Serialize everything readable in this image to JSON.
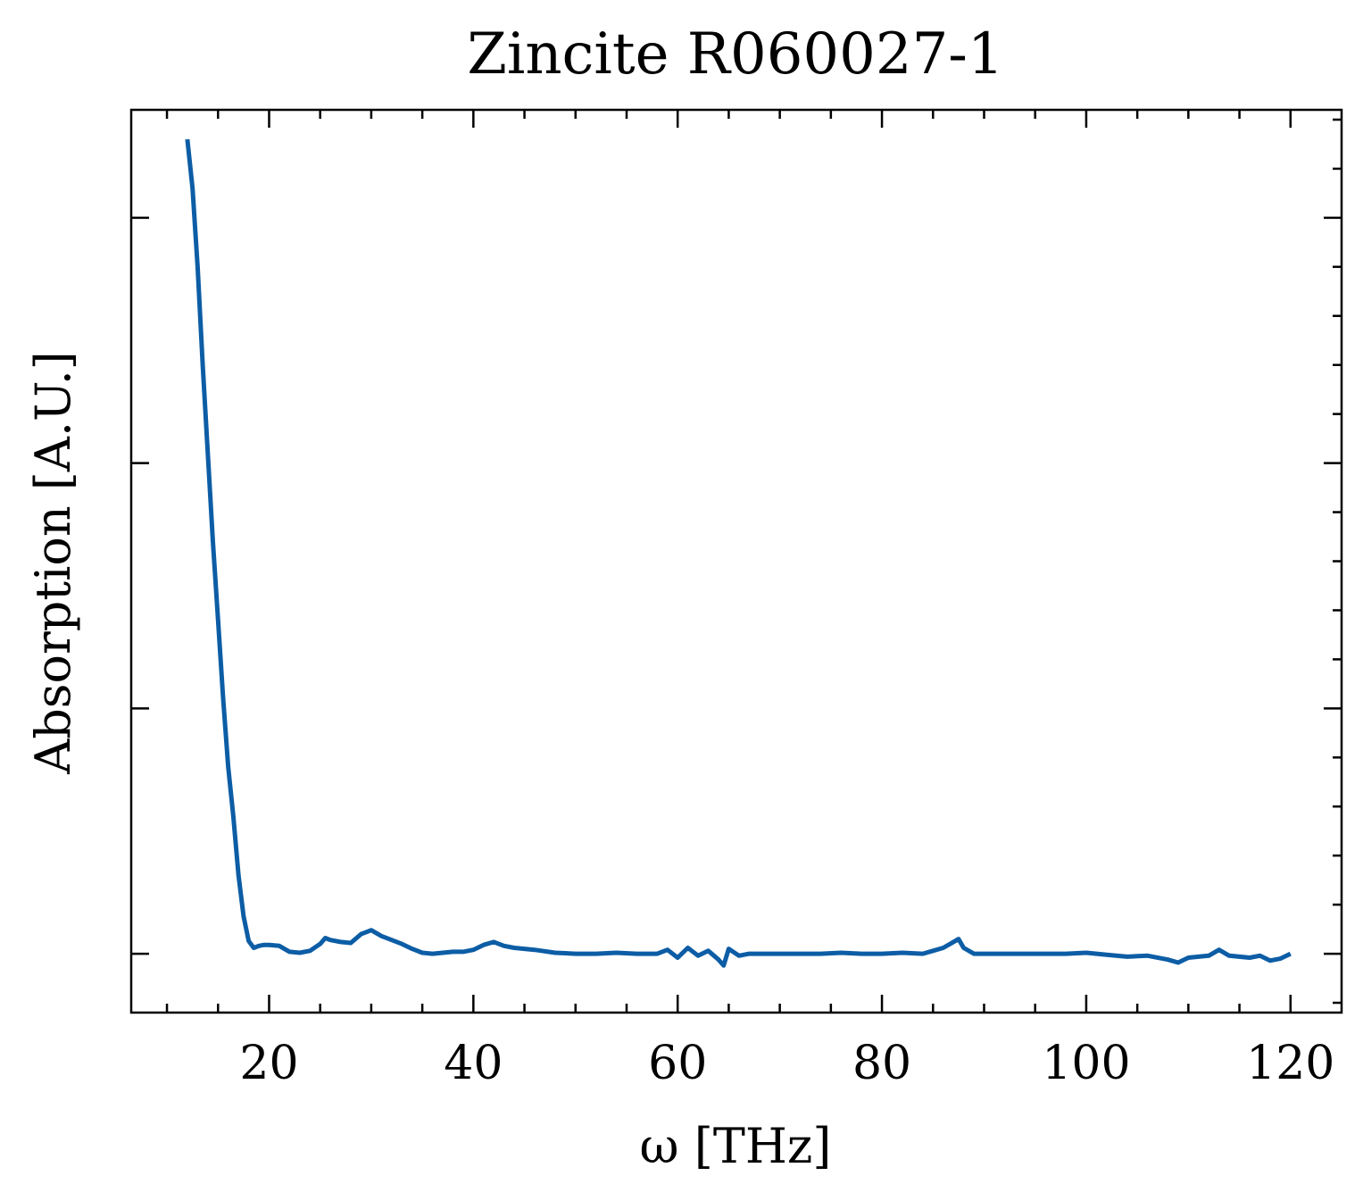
{
  "chart_data": {
    "type": "line",
    "title": "Zincite R060027-1",
    "xlabel": "ω [THz]",
    "ylabel": "Absorption [A.U.]",
    "xlim": [
      6.5,
      125
    ],
    "ylim": [
      -0.06,
      0.86
    ],
    "x_ticks": [
      20,
      40,
      60,
      80,
      100,
      120
    ],
    "x_tick_labels": [
      "20",
      "40",
      "60",
      "80",
      "100",
      "120"
    ],
    "y_ticks": [
      0.0,
      0.25,
      0.5,
      0.75
    ],
    "y_tick_labels_shown": false,
    "grid": false,
    "legend": "none",
    "colors": {
      "line": "#0c5da5",
      "axes": "#000000",
      "background": "#ffffff"
    },
    "series": [
      {
        "x": [
          12.0,
          12.5,
          13.0,
          13.5,
          14.0,
          14.5,
          15.0,
          15.5,
          16.0,
          16.5,
          17.0,
          17.5,
          18.0,
          18.5,
          19.0,
          19.5,
          20.0,
          21.0,
          22.0,
          23.0,
          24.0,
          25.0,
          25.5,
          26.0,
          27.0,
          28.0,
          29.0,
          29.5,
          30.0,
          31.0,
          32.0,
          33.0,
          34.0,
          35.0,
          36.0,
          37.0,
          38.0,
          39.0,
          40.0,
          41.0,
          42.0,
          43.0,
          44.0,
          45.0,
          46.0,
          48.0,
          50.0,
          52.0,
          54.0,
          56.0,
          58.0,
          59.0,
          60.0,
          61.0,
          62.0,
          63.0,
          64.0,
          64.5,
          65.0,
          66.0,
          67.0,
          68.0,
          70.0,
          72.0,
          74.0,
          76.0,
          78.0,
          80.0,
          82.0,
          84.0,
          85.0,
          86.0,
          87.0,
          87.5,
          88.0,
          89.0,
          90.0,
          92.0,
          94.0,
          96.0,
          98.0,
          100.0,
          102.0,
          104.0,
          106.0,
          108.0,
          109.0,
          110.0,
          112.0,
          113.0,
          114.0,
          116.0,
          117.0,
          118.0,
          119.0,
          120.0
        ],
        "y": [
          0.83,
          0.78,
          0.7,
          0.6,
          0.51,
          0.42,
          0.34,
          0.26,
          0.19,
          0.14,
          0.08,
          0.038,
          0.013,
          0.006,
          0.008,
          0.009,
          0.009,
          0.008,
          0.002,
          0.001,
          0.003,
          0.01,
          0.016,
          0.014,
          0.012,
          0.011,
          0.02,
          0.022,
          0.024,
          0.018,
          0.014,
          0.01,
          0.005,
          0.001,
          0.0,
          0.001,
          0.002,
          0.002,
          0.004,
          0.009,
          0.012,
          0.008,
          0.006,
          0.005,
          0.004,
          0.001,
          0.0,
          0.0,
          0.001,
          0.0,
          0.0,
          0.004,
          -0.004,
          0.006,
          -0.002,
          0.003,
          -0.006,
          -0.012,
          0.005,
          -0.002,
          0.0,
          0.0,
          0.0,
          0.0,
          0.0,
          0.001,
          0.0,
          0.0,
          0.001,
          0.0,
          0.003,
          0.006,
          0.012,
          0.015,
          0.006,
          0.0,
          0.0,
          0.0,
          0.0,
          0.0,
          0.0,
          0.001,
          -0.001,
          -0.003,
          -0.002,
          -0.006,
          -0.009,
          -0.004,
          -0.002,
          0.004,
          -0.002,
          -0.004,
          -0.002,
          -0.007,
          -0.005,
          0.0
        ]
      }
    ]
  }
}
